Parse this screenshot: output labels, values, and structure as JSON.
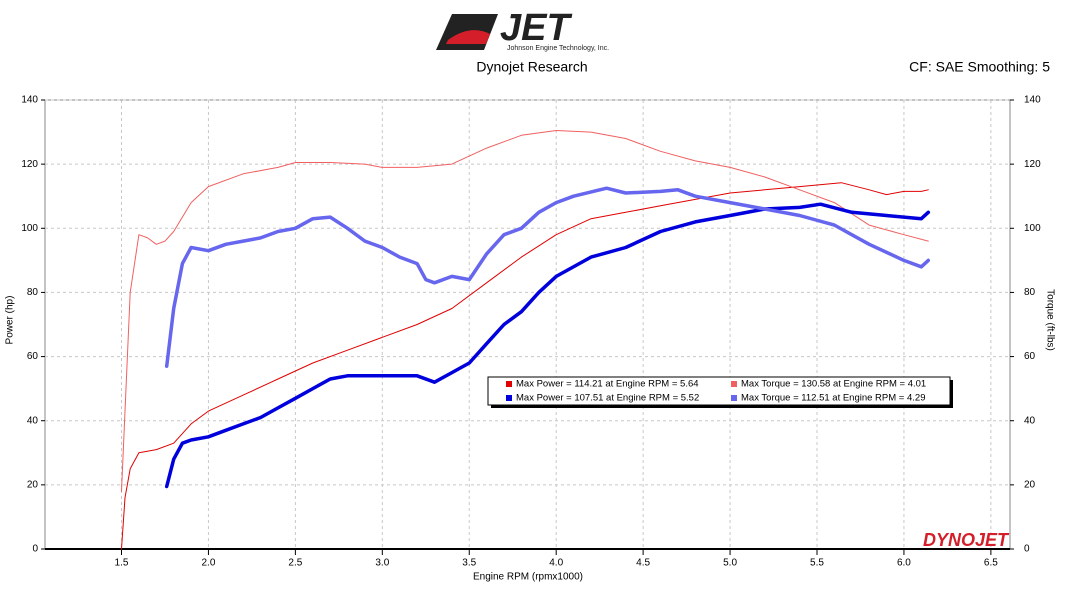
{
  "chart_data": {
    "type": "line",
    "logo": "JET",
    "logo_subtitle": "Johnson Engine Technology, Inc.",
    "title": "Dynojet Research",
    "subtitle": "CF: SAE Smoothing: 5",
    "watermark": "DYNOJET",
    "xlabel": "Engine RPM (rpmx1000)",
    "ylabel": "Power (hp)",
    "y2label": "Torque (ft-lbs)",
    "xlim": [
      1.06,
      6.61
    ],
    "ylim": [
      0,
      140
    ],
    "y2lim": [
      0,
      140
    ],
    "xticks": [
      1.5,
      {
        "value": 2,
        "label": "2.0"
      },
      2.5,
      {
        "value": 3,
        "label": "3.0"
      },
      3.5,
      {
        "value": 4,
        "label": "4.0"
      },
      4.5,
      {
        "value": 5,
        "label": "5.0"
      },
      5.5,
      {
        "value": 6,
        "label": "6.0"
      },
      6.5
    ],
    "yticks": [
      0,
      20,
      40,
      60,
      80,
      100,
      120,
      140
    ],
    "y2ticks": [
      0,
      20,
      40,
      60,
      80,
      100,
      120,
      140
    ],
    "grid": true,
    "series": [
      {
        "name": "Max Power = 114.21 at Engine RPM = 5.64",
        "color": "#e00000",
        "width": 1,
        "x": [
          1.5,
          1.52,
          1.55,
          1.6,
          1.7,
          1.8,
          1.9,
          2.0,
          2.2,
          2.4,
          2.6,
          2.8,
          3.0,
          3.2,
          3.4,
          3.6,
          3.8,
          4.0,
          4.2,
          4.4,
          4.6,
          4.8,
          5.0,
          5.2,
          5.4,
          5.64,
          5.8,
          5.9,
          6.0,
          6.1,
          6.14
        ],
        "values": [
          0,
          16,
          25,
          30,
          31,
          33,
          39,
          43,
          48,
          53,
          58,
          62,
          66,
          70,
          75,
          83,
          91,
          98,
          103,
          105,
          107,
          109,
          111,
          112,
          113,
          114.2,
          112,
          110.5,
          111.5,
          111.5,
          112
        ]
      },
      {
        "name": "Max Torque = 130.58 at Engine RPM = 4.01",
        "color": "#f06060",
        "width": 1,
        "axis": "y2",
        "x": [
          1.5,
          1.55,
          1.6,
          1.65,
          1.7,
          1.75,
          1.8,
          1.9,
          2.0,
          2.2,
          2.4,
          2.5,
          2.7,
          2.9,
          3.0,
          3.2,
          3.4,
          3.6,
          3.8,
          4.0,
          4.2,
          4.4,
          4.6,
          4.8,
          5.0,
          5.2,
          5.4,
          5.6,
          5.8,
          6.0,
          6.14
        ],
        "values": [
          18,
          80,
          98,
          97,
          95,
          96,
          99,
          108,
          113,
          117,
          119,
          120.5,
          120.5,
          120,
          119,
          119,
          120,
          125,
          129,
          130.5,
          130,
          128,
          124,
          121,
          119,
          116,
          112,
          108,
          101,
          98,
          96
        ]
      },
      {
        "name": "Max Power = 107.51 at Engine RPM = 5.52",
        "color": "#0000dd",
        "width": 3.5,
        "x": [
          1.76,
          1.8,
          1.85,
          1.9,
          2.0,
          2.1,
          2.2,
          2.3,
          2.4,
          2.5,
          2.6,
          2.7,
          2.8,
          3.0,
          3.1,
          3.2,
          3.3,
          3.4,
          3.5,
          3.6,
          3.7,
          3.8,
          3.9,
          4.0,
          4.2,
          4.4,
          4.6,
          4.8,
          5.0,
          5.2,
          5.4,
          5.52,
          5.7,
          5.9,
          6.1,
          6.14
        ],
        "values": [
          19.5,
          28,
          33,
          34,
          35,
          37,
          39,
          41,
          44,
          47,
          50,
          53,
          54,
          54,
          54,
          54,
          52,
          55,
          58,
          64,
          70,
          74,
          80,
          85,
          91,
          94,
          99,
          102,
          104,
          106,
          106.5,
          107.5,
          105,
          104,
          103,
          105
        ]
      },
      {
        "name": "Max Torque = 112.51 at Engine RPM = 4.29",
        "color": "#6666ee",
        "width": 3.5,
        "axis": "y2",
        "x": [
          1.76,
          1.8,
          1.85,
          1.9,
          2.0,
          2.1,
          2.2,
          2.3,
          2.4,
          2.5,
          2.6,
          2.7,
          2.8,
          2.9,
          3.0,
          3.1,
          3.2,
          3.25,
          3.3,
          3.4,
          3.5,
          3.6,
          3.7,
          3.8,
          3.9,
          4.0,
          4.1,
          4.29,
          4.4,
          4.6,
          4.7,
          4.8,
          5.0,
          5.2,
          5.4,
          5.6,
          5.8,
          6.0,
          6.1,
          6.14
        ],
        "values": [
          57,
          75,
          89,
          94,
          93,
          95,
          96,
          97,
          99,
          100,
          103,
          103.5,
          100,
          96,
          94,
          91,
          89,
          84,
          83,
          85,
          84,
          92,
          98,
          100,
          105,
          108,
          110,
          112.5,
          111,
          111.5,
          112,
          110,
          108,
          106,
          104,
          101,
          95,
          90,
          88,
          90
        ]
      }
    ]
  }
}
